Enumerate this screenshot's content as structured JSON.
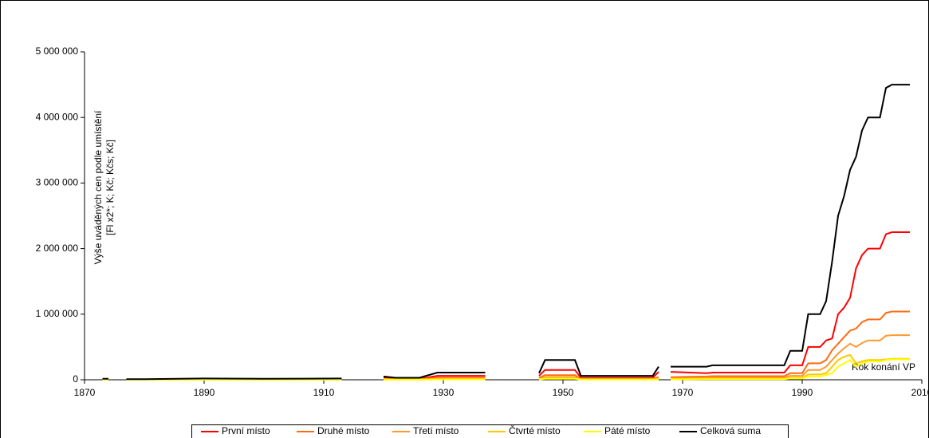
{
  "chart_data": {
    "type": "line",
    "y_label": [
      "Výše uváděných cen podle umístění",
      "[Fl x2*; K; Kč; Kčs; Kč]"
    ],
    "annotation": "Rok konání VP",
    "x": [
      1873,
      1874,
      1876,
      1877,
      1880,
      1890,
      1900,
      1913,
      1916,
      1920,
      1922,
      1926,
      1929,
      1937,
      1940,
      1946,
      1947,
      1952,
      1953,
      1965,
      1966,
      1967,
      1968,
      1974,
      1975,
      1987,
      1988,
      1990,
      1991,
      1993,
      1994,
      1995,
      1996,
      1997,
      1998,
      1999,
      2000,
      2001,
      2002,
      2003,
      2004,
      2005,
      2006,
      2008
    ],
    "series": [
      {
        "name": "První místo",
        "color": "#ff0000",
        "values": [
          8000,
          8000,
          null,
          5000,
          5000,
          10000,
          8000,
          10000,
          null,
          25000,
          15000,
          15000,
          60000,
          60000,
          null,
          60000,
          150000,
          150000,
          30000,
          30000,
          120000,
          null,
          120000,
          100000,
          110000,
          110000,
          220000,
          220000,
          500000,
          500000,
          600000,
          630000,
          1000000,
          1100000,
          1250000,
          1700000,
          1900000,
          2000000,
          2000000,
          2000000,
          2220000,
          2250000,
          2250000,
          2250000
        ]
      },
      {
        "name": "Druhé místo",
        "color": "#ff6a13",
        "values": [
          4000,
          4000,
          null,
          2500,
          2500,
          5000,
          4000,
          5000,
          null,
          12000,
          8000,
          8000,
          30000,
          30000,
          null,
          30000,
          70000,
          70000,
          15000,
          15000,
          40000,
          null,
          40000,
          50000,
          55000,
          55000,
          100000,
          100000,
          250000,
          250000,
          300000,
          450000,
          550000,
          650000,
          750000,
          780000,
          880000,
          920000,
          920000,
          920000,
          1020000,
          1040000,
          1040000,
          1040000
        ]
      },
      {
        "name": "Třetí místo",
        "color": "#ff9a2e",
        "values": [
          2000,
          2000,
          null,
          1500,
          1500,
          3000,
          2000,
          3000,
          null,
          8000,
          4000,
          4000,
          15000,
          15000,
          null,
          15000,
          40000,
          40000,
          8000,
          8000,
          20000,
          null,
          20000,
          30000,
          30000,
          30000,
          60000,
          60000,
          150000,
          150000,
          200000,
          300000,
          400000,
          480000,
          550000,
          500000,
          560000,
          600000,
          600000,
          600000,
          670000,
          680000,
          680000,
          680000
        ]
      },
      {
        "name": "Čtvrté místo",
        "color": "#ffc800",
        "values": [
          1000,
          1000,
          null,
          1000,
          1000,
          1500,
          1000,
          1500,
          null,
          4000,
          2000,
          2000,
          8000,
          8000,
          null,
          8000,
          25000,
          25000,
          5000,
          5000,
          10000,
          null,
          10000,
          15000,
          15000,
          15000,
          30000,
          30000,
          80000,
          80000,
          100000,
          200000,
          300000,
          350000,
          380000,
          250000,
          280000,
          300000,
          300000,
          300000,
          310000,
          320000,
          320000,
          320000
        ]
      },
      {
        "name": "Páté místo",
        "color": "#ffff00",
        "values": [
          500,
          500,
          null,
          500,
          500,
          1000,
          500,
          1000,
          null,
          2000,
          1000,
          1000,
          5000,
          5000,
          null,
          5000,
          15000,
          15000,
          3000,
          3000,
          6000,
          null,
          6000,
          10000,
          10000,
          10000,
          20000,
          20000,
          50000,
          50000,
          70000,
          100000,
          200000,
          250000,
          300000,
          200000,
          250000,
          280000,
          280000,
          280000,
          300000,
          310000,
          310000,
          310000
        ]
      },
      {
        "name": "Celková suma",
        "color": "#000000",
        "values": [
          15000,
          15000,
          null,
          10000,
          10000,
          20000,
          15000,
          20000,
          null,
          50000,
          30000,
          30000,
          110000,
          110000,
          null,
          100000,
          300000,
          300000,
          60000,
          60000,
          200000,
          null,
          200000,
          200000,
          220000,
          220000,
          440000,
          440000,
          1000000,
          1000000,
          1200000,
          1800000,
          2500000,
          2800000,
          3200000,
          3400000,
          3800000,
          4000000,
          4000000,
          4000000,
          4450000,
          4500000,
          4500000,
          4500000
        ]
      }
    ],
    "xlim": [
      1870,
      2010
    ],
    "xticks": [
      1870,
      1890,
      1910,
      1930,
      1950,
      1970,
      1990,
      2010
    ],
    "ylim": [
      0,
      5000000
    ],
    "yticks": [
      0,
      {
        "value": 1000000,
        "label": "1 000 000"
      },
      {
        "value": 2000000,
        "label": "2 000 000"
      },
      {
        "value": 3000000,
        "label": "3 000 000"
      },
      {
        "value": 4000000,
        "label": "4 000 000"
      },
      {
        "value": 5000000,
        "label": "5 000 000"
      }
    ],
    "grid": false,
    "legend": "bottom"
  }
}
